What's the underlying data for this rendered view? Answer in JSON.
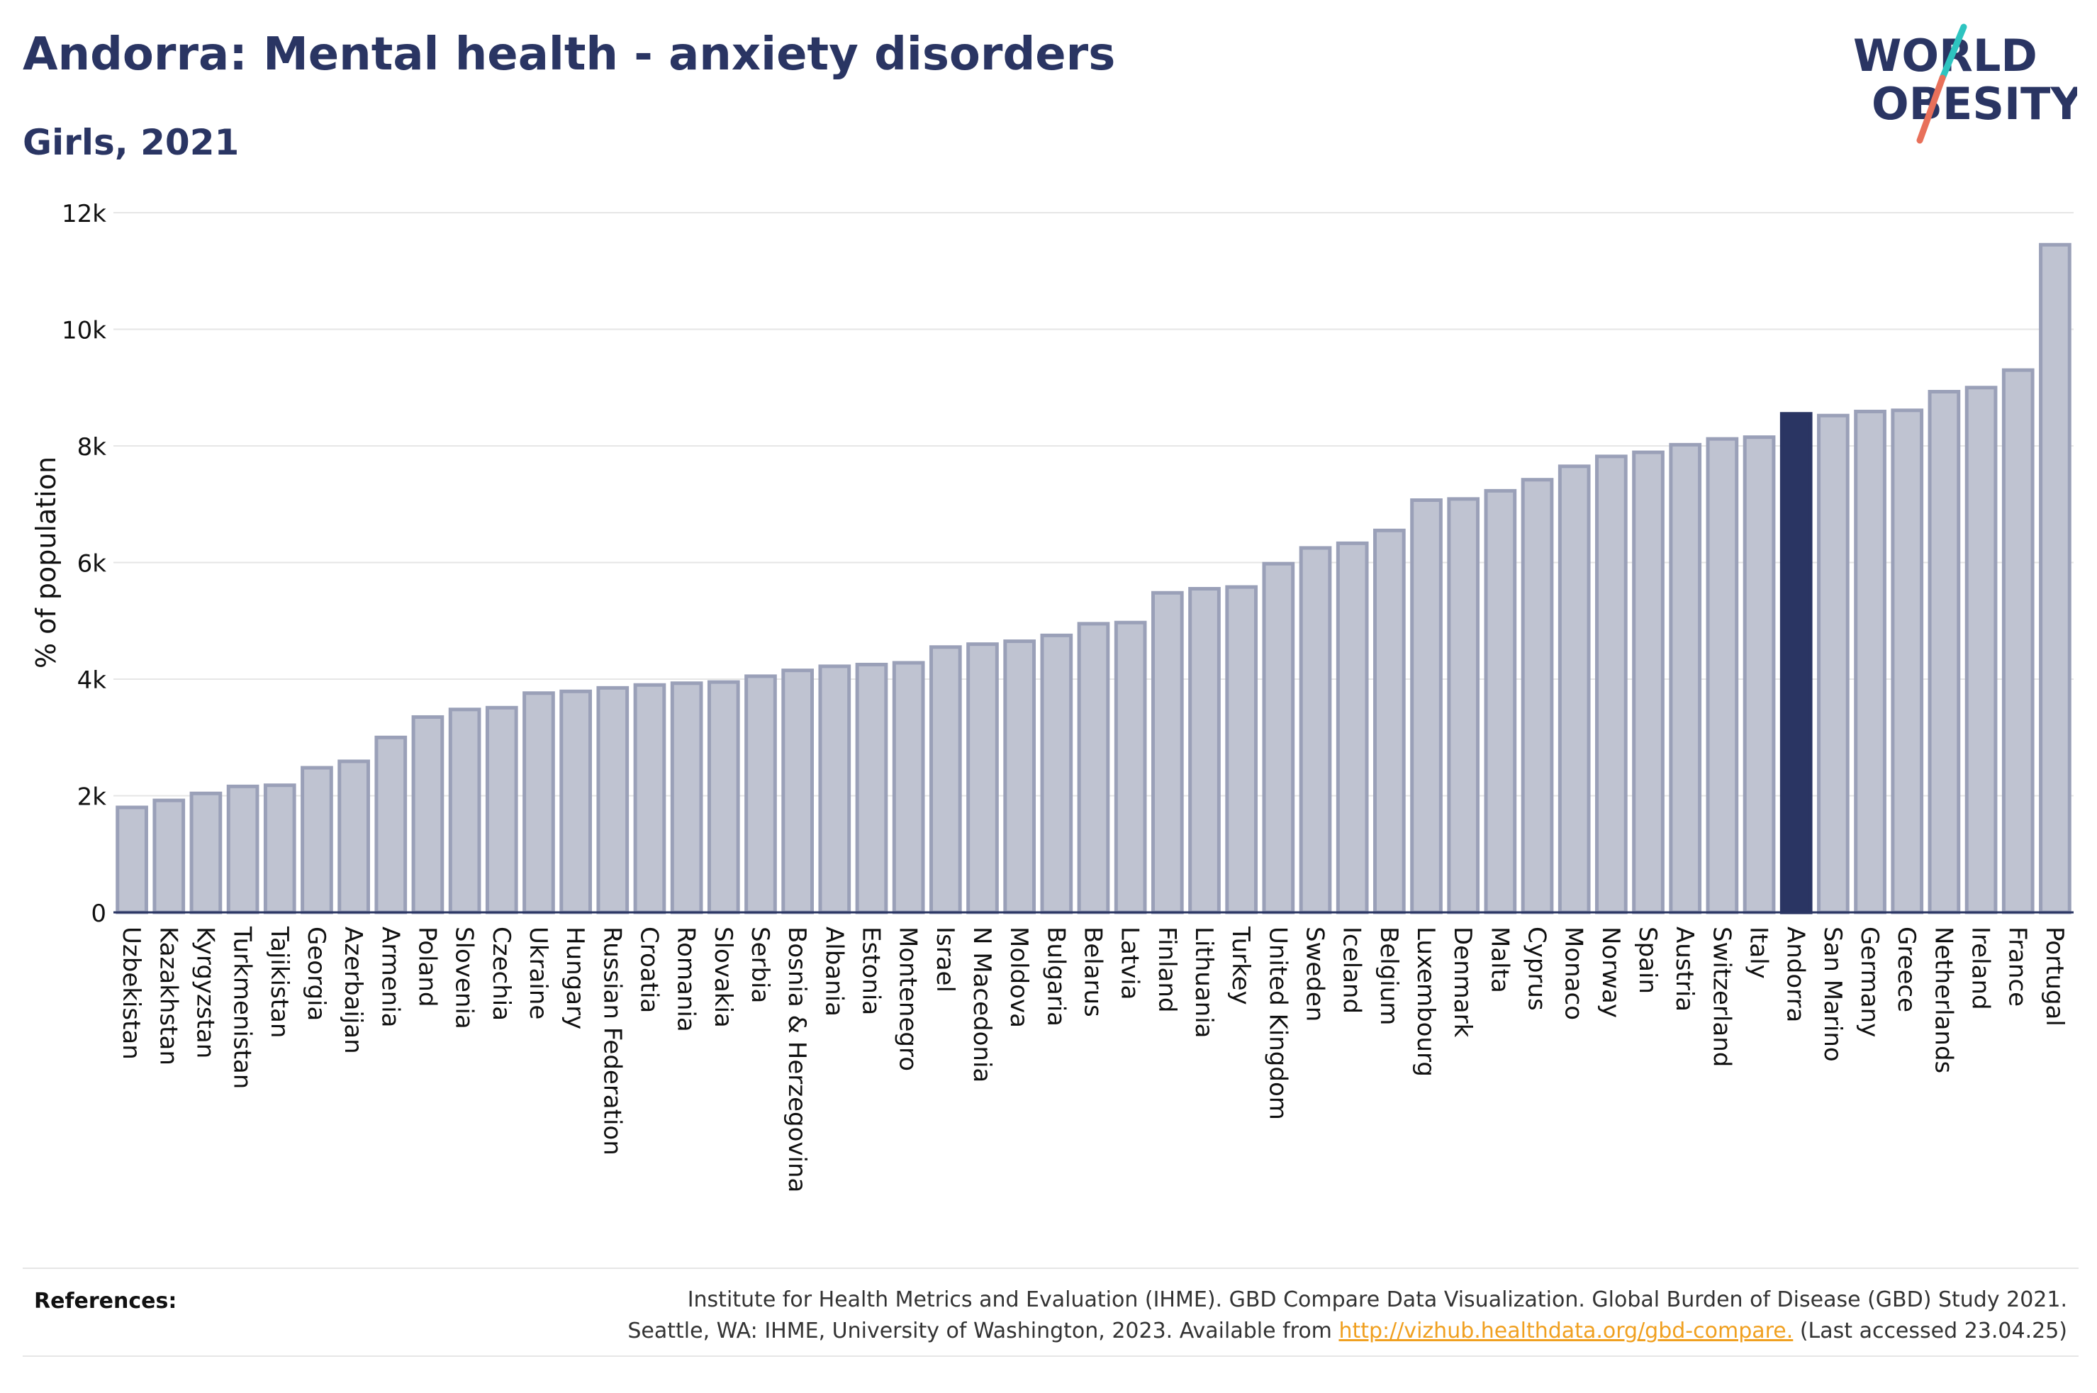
{
  "header": {
    "title": "Andorra: Mental health - anxiety disorders",
    "subtitle": "Girls, 2021"
  },
  "logo": {
    "line1": "WORLD",
    "line2": "OBESITY",
    "accent_colors": [
      "#2ec4c0",
      "#e8705a"
    ],
    "text_color": "#2a3563"
  },
  "colors": {
    "bar": "#bfc3d1",
    "bar_stroke": "#9aa0b8",
    "highlight": "#2a3563",
    "grid": "#e6e6e6",
    "axis": "#2a3563"
  },
  "chart_data": {
    "type": "bar",
    "xlabel": "",
    "ylabel": "% of population",
    "ylim": [
      0,
      12000
    ],
    "yticks": [
      0,
      2000,
      4000,
      6000,
      8000,
      10000,
      12000
    ],
    "ytick_labels": [
      "0",
      "2k",
      "4k",
      "6k",
      "8k",
      "10k",
      "12k"
    ],
    "grid": true,
    "highlight": "Andorra",
    "categories": [
      "Uzbekistan",
      "Kazakhstan",
      "Kyrgyzstan",
      "Turkmenistan",
      "Tajikistan",
      "Georgia",
      "Azerbaijan",
      "Armenia",
      "Poland",
      "Slovenia",
      "Czechia",
      "Ukraine",
      "Hungary",
      "Russian Federation",
      "Croatia",
      "Romania",
      "Slovakia",
      "Serbia",
      "Bosnia & Herzegovina",
      "Albania",
      "Estonia",
      "Montenegro",
      "Israel",
      "N Macedonia",
      "Moldova",
      "Bulgaria",
      "Belarus",
      "Latvia",
      "Finland",
      "Lithuania",
      "Turkey",
      "United Kingdom",
      "Sweden",
      "Iceland",
      "Belgium",
      "Luxembourg",
      "Denmark",
      "Malta",
      "Cyprus",
      "Monaco",
      "Norway",
      "Spain",
      "Austria",
      "Switzerland",
      "Italy",
      "Andorra",
      "San Marino",
      "Germany",
      "Greece",
      "Netherlands",
      "Ireland",
      "France",
      "Portugal"
    ],
    "values": [
      1800,
      1920,
      2040,
      2160,
      2180,
      2480,
      2590,
      3000,
      3350,
      3480,
      3510,
      3760,
      3790,
      3850,
      3900,
      3930,
      3950,
      4050,
      4150,
      4220,
      4250,
      4280,
      4550,
      4600,
      4650,
      4750,
      4950,
      4970,
      5480,
      5550,
      5580,
      5980,
      6250,
      6330,
      6550,
      7070,
      7090,
      7230,
      7420,
      7650,
      7820,
      7890,
      8020,
      8120,
      8150,
      8550,
      8520,
      8590,
      8610,
      8930,
      9000,
      9300,
      11450
    ]
  },
  "references": {
    "label": "References:",
    "line1": "Institute for Health Metrics and Evaluation (IHME). GBD Compare Data Visualization. Global Burden of Disease (GBD) Study 2021.",
    "line2_prefix": "Seattle, WA: IHME, University of Washington, 2023. Available from ",
    "link": "http://vizhub.healthdata.org/gbd-compare.",
    "line2_suffix": " (Last accessed 23.04.25)"
  }
}
